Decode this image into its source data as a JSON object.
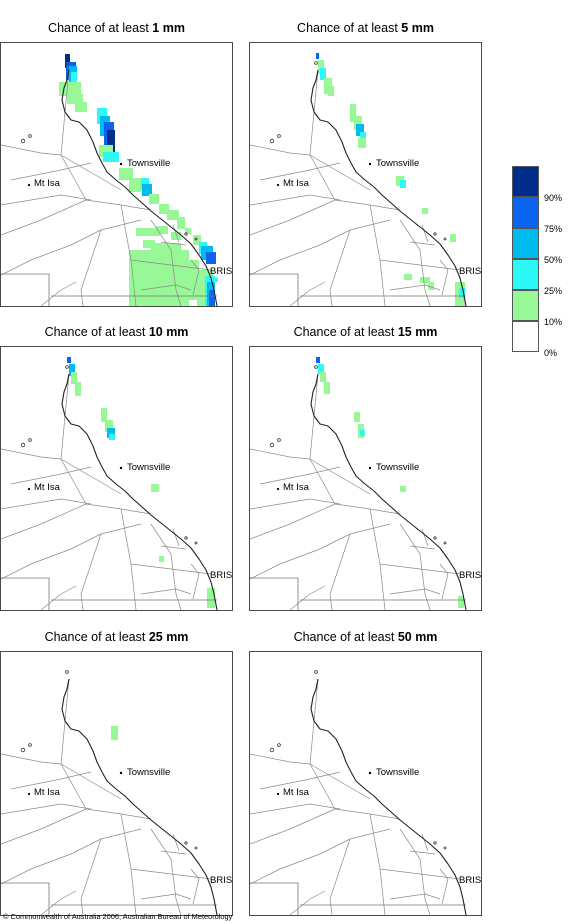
{
  "title_prefix": "Chance of at least ",
  "panels": [
    {
      "amount": "1 mm"
    },
    {
      "amount": "5 mm"
    },
    {
      "amount": "10 mm"
    },
    {
      "amount": "15 mm"
    },
    {
      "amount": "25 mm"
    },
    {
      "amount": "50 mm"
    }
  ],
  "place_labels": {
    "townsville": "Townsville",
    "mt_isa": "Mt Isa",
    "brisbane": "BRIS"
  },
  "legend": {
    "colors": [
      "#002c8c",
      "#0a64f0",
      "#00bcee",
      "#2cf8f8",
      "#98f898",
      "#ffffff"
    ],
    "labels": [
      "90%",
      "75%",
      "50%",
      "25%",
      "10%",
      "0%"
    ]
  },
  "footer": "© Commonwealth of Australia 2006, Australian Bureau of Meteorology"
}
